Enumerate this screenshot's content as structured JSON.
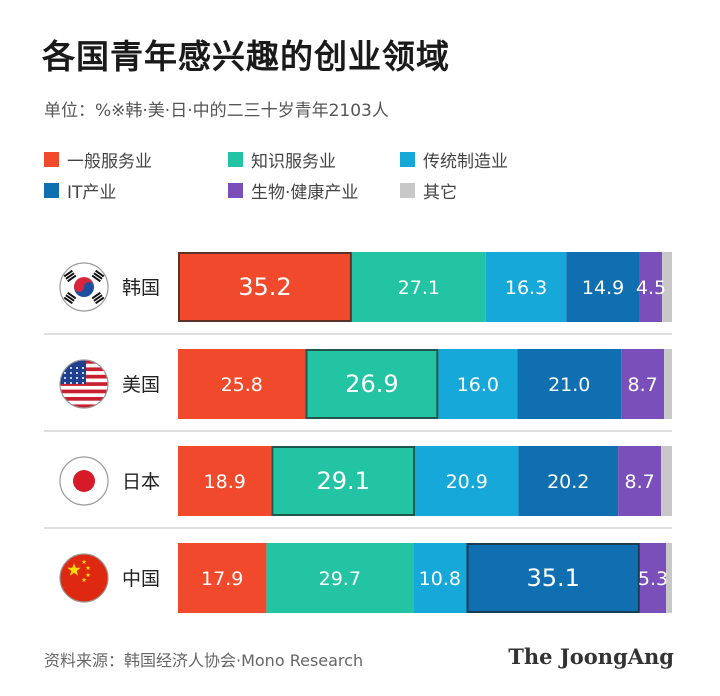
{
  "title": "各国青年感兴趣的创业领域",
  "unit": "单位：%※韩·美·日·中的二三十岁青年2103人",
  "source": "资料来源：韩国经济人协会·Mono Research",
  "brand": "The JoongAng",
  "legend": [
    {
      "label": "一般服务业",
      "color": "#f0492b"
    },
    {
      "label": "知识服务业",
      "color": "#22c4a4"
    },
    {
      "label": "传统制造业",
      "color": "#17a8da"
    },
    {
      "label": "IT产业",
      "color": "#0f6fb0"
    },
    {
      "label": "生物·健康产业",
      "color": "#7a4fba"
    },
    {
      "label": "其它",
      "color": "#c8c8c8"
    }
  ],
  "chart_data": {
    "type": "bar",
    "orientation": "horizontal",
    "stacked": true,
    "categories": [
      "韩国",
      "美国",
      "日本",
      "中国"
    ],
    "series": [
      {
        "name": "一般服务业",
        "values": [
          35.2,
          25.8,
          18.9,
          17.9
        ]
      },
      {
        "name": "知识服务业",
        "values": [
          27.1,
          26.9,
          29.1,
          29.7
        ]
      },
      {
        "name": "传统制造业",
        "values": [
          16.3,
          16.0,
          20.9,
          10.8
        ]
      },
      {
        "name": "IT产业",
        "values": [
          14.9,
          21.0,
          20.2,
          35.1
        ]
      },
      {
        "name": "生物·健康产业",
        "values": [
          4.5,
          8.7,
          8.7,
          5.3
        ]
      },
      {
        "name": "其它",
        "values": [
          2.0,
          1.6,
          2.2,
          1.2
        ]
      }
    ],
    "value_labels_shown_for_series": [
      0,
      1,
      2,
      3,
      4
    ],
    "highlighted": [
      {
        "category": "韩国",
        "series": "一般服务业"
      },
      {
        "category": "美国",
        "series": "知识服务业"
      },
      {
        "category": "日本",
        "series": "知识服务业"
      },
      {
        "category": "中国",
        "series": "IT产业"
      }
    ],
    "flags": [
      "korea-flag-icon",
      "usa-flag-icon",
      "japan-flag-icon",
      "china-flag-icon"
    ],
    "xlim": [
      0,
      100
    ],
    "grid": false,
    "legend_position": "top-left"
  }
}
